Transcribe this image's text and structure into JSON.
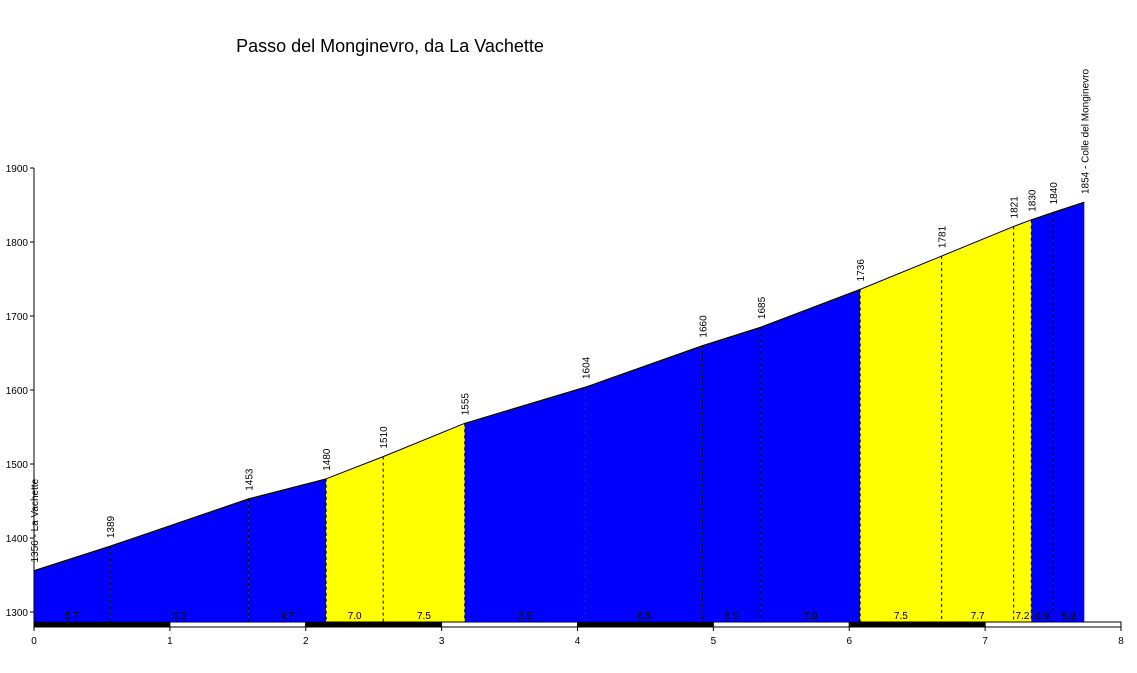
{
  "chart_data": {
    "type": "area",
    "title": "Passo del Monginevro, da La Vachette",
    "xlabel": "",
    "ylabel": "",
    "xlim": [
      0,
      8
    ],
    "ylim": [
      1290,
      1900
    ],
    "xticks": [
      0,
      1,
      2,
      3,
      4,
      5,
      6,
      7,
      8
    ],
    "yticks": [
      1300,
      1400,
      1500,
      1600,
      1700,
      1800,
      1900
    ],
    "grid": false,
    "colors": {
      "steep": "#ffff00",
      "normal": "#0000ff"
    },
    "profile": [
      {
        "x": 0.0,
        "y": 1356,
        "label": "1356 - La Vachette"
      },
      {
        "x": 0.56,
        "y": 1389,
        "label": "1389"
      },
      {
        "x": 1.58,
        "y": 1453,
        "label": "1453"
      },
      {
        "x": 2.15,
        "y": 1480,
        "label": "1480"
      },
      {
        "x": 2.57,
        "y": 1510,
        "label": "1510"
      },
      {
        "x": 3.17,
        "y": 1555,
        "label": "1555"
      },
      {
        "x": 4.06,
        "y": 1604,
        "label": "1604"
      },
      {
        "x": 4.92,
        "y": 1660,
        "label": "1660"
      },
      {
        "x": 5.35,
        "y": 1685,
        "label": "1685"
      },
      {
        "x": 6.08,
        "y": 1736,
        "label": "1736"
      },
      {
        "x": 6.68,
        "y": 1781,
        "label": "1781"
      },
      {
        "x": 7.21,
        "y": 1821,
        "label": "1821"
      },
      {
        "x": 7.34,
        "y": 1830,
        "label": "1830"
      },
      {
        "x": 7.5,
        "y": 1840,
        "label": "1840"
      },
      {
        "x": 7.73,
        "y": 1854,
        "label": "1854 - Colle del Monginevro"
      }
    ],
    "segments": [
      {
        "from": 0.0,
        "to": 0.56,
        "gradient": "5.7",
        "color": "normal"
      },
      {
        "from": 0.56,
        "to": 1.58,
        "gradient": "6.3",
        "color": "normal"
      },
      {
        "from": 1.58,
        "to": 2.15,
        "gradient": "4.7",
        "color": "normal"
      },
      {
        "from": 2.15,
        "to": 2.57,
        "gradient": "7.0",
        "color": "steep"
      },
      {
        "from": 2.57,
        "to": 3.17,
        "gradient": "7.5",
        "color": "steep"
      },
      {
        "from": 3.17,
        "to": 4.06,
        "gradient": "5.5",
        "color": "normal"
      },
      {
        "from": 4.06,
        "to": 4.92,
        "gradient": "6.5",
        "color": "normal"
      },
      {
        "from": 4.92,
        "to": 5.35,
        "gradient": "6.0",
        "color": "normal"
      },
      {
        "from": 5.35,
        "to": 6.08,
        "gradient": "7.0",
        "color": "normal"
      },
      {
        "from": 6.08,
        "to": 6.68,
        "gradient": "7.5",
        "color": "steep"
      },
      {
        "from": 6.68,
        "to": 7.21,
        "gradient": "7.7",
        "color": "steep"
      },
      {
        "from": 7.21,
        "to": 7.34,
        "gradient": "7.2",
        "color": "steep"
      },
      {
        "from": 7.34,
        "to": 7.5,
        "gradient": "6.9",
        "color": "normal"
      },
      {
        "from": 7.5,
        "to": 7.73,
        "gradient": "5.9",
        "color": "normal"
      }
    ]
  }
}
